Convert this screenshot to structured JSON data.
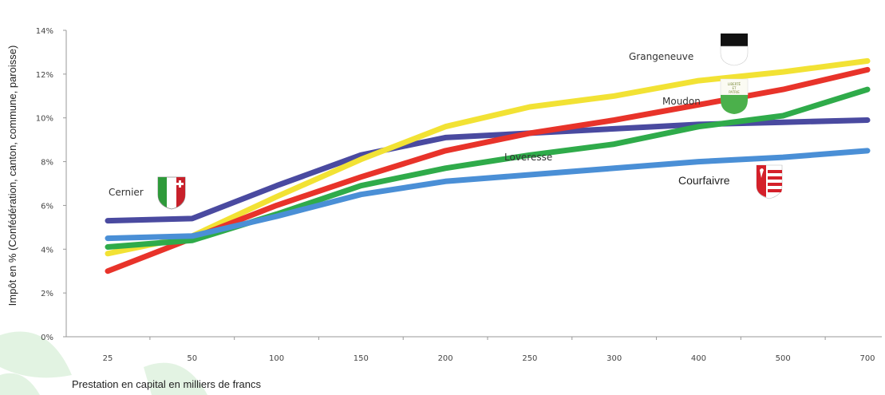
{
  "chart_data": {
    "type": "line",
    "title": "",
    "ylabel": "Impôt en % (Confédération, canton, commune, paroisse)",
    "xlabel": "Prestation en capital en milliers de francs",
    "categories": [
      "25",
      "50",
      "100",
      "150",
      "200",
      "250",
      "300",
      "400",
      "500",
      "700"
    ],
    "y_ticks": [
      "0%",
      "2%",
      "4%",
      "6%",
      "8%",
      "10%",
      "12%",
      "14%"
    ],
    "ylim": [
      0,
      14
    ],
    "grid": false,
    "series": [
      {
        "name": "Cernier",
        "color": "#4a4aa0",
        "values": [
          5.3,
          5.4,
          6.9,
          8.3,
          9.1,
          9.3,
          9.5,
          9.7,
          9.8,
          9.9
        ]
      },
      {
        "name": "Grangeneuve",
        "color": "#f2e234",
        "values": [
          3.8,
          4.6,
          6.4,
          8.1,
          9.6,
          10.5,
          11.0,
          11.7,
          12.1,
          12.6
        ]
      },
      {
        "name": "Moudon",
        "color": "#e8332a",
        "values": [
          3.0,
          4.5,
          6.0,
          7.3,
          8.5,
          9.3,
          9.9,
          10.6,
          11.3,
          12.2
        ]
      },
      {
        "name": "Loveresse",
        "color": "#2fab4a",
        "values": [
          4.1,
          4.4,
          5.6,
          6.9,
          7.7,
          8.3,
          8.8,
          9.6,
          10.1,
          11.3
        ]
      },
      {
        "name": "Courfaivre",
        "color": "#4a8fd6",
        "values": [
          4.5,
          4.6,
          5.5,
          6.5,
          7.1,
          7.4,
          7.7,
          8.0,
          8.2,
          8.5
        ]
      }
    ],
    "annotations": [
      {
        "text": "Grangeneuve",
        "series": "Grangeneuve"
      },
      {
        "text": "Moudon",
        "series": "Moudon"
      },
      {
        "text": "Loveresse",
        "series": "Loveresse"
      },
      {
        "text": "Courfaivre",
        "series": "Courfaivre"
      },
      {
        "text": "Cernier",
        "series": "Cernier"
      }
    ],
    "emblems": [
      {
        "name": "neuchatel-flag-icon",
        "colors": [
          "#2e9a3a",
          "#ffffff",
          "#c8202a"
        ]
      },
      {
        "name": "fribourg-flag-icon",
        "colors": [
          "#111111",
          "#ffffff"
        ]
      },
      {
        "name": "vaud-flag-icon",
        "colors": [
          "#ffffff",
          "#3aa63a"
        ]
      },
      {
        "name": "jura-flag-icon",
        "colors": [
          "#d4202a",
          "#ffffff"
        ]
      }
    ]
  }
}
